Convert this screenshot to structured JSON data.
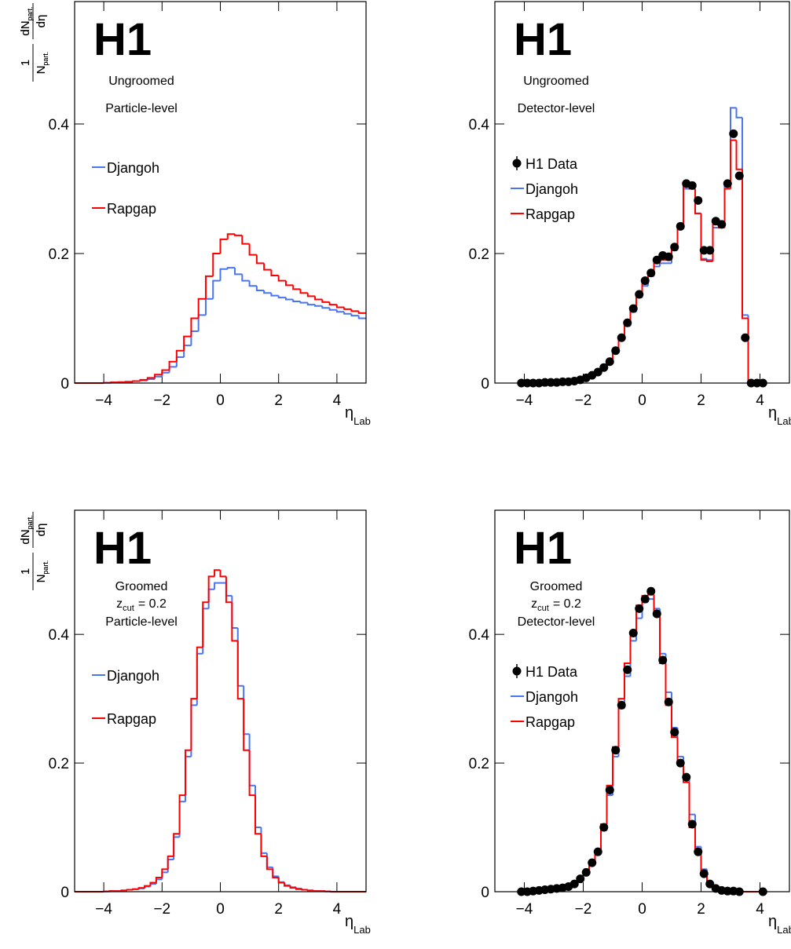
{
  "chart_data": [
    {
      "type": "histogram",
      "title": "H1",
      "annotations": [
        "Ungroomed",
        "Particle-level"
      ],
      "ylabel": {
        "num1": "1",
        "den1": "N",
        "den1_sub": "part.",
        "num2": "dN",
        "num2_sub": "part.",
        "den2": "dη"
      },
      "xlabel": "η",
      "xlabel_sub": "Lab",
      "xlim": [
        -5,
        5
      ],
      "xticks": [
        {
          "value": -4,
          "label": "−4"
        },
        {
          "value": -2,
          "label": "−2"
        },
        0,
        2,
        4
      ],
      "ylim": [
        0,
        0.589
      ],
      "yticks": [
        0,
        0.2,
        0.4
      ],
      "bins": [
        -5,
        -4.75,
        -4.5,
        -4.25,
        -4,
        -3.75,
        -3.5,
        -3.25,
        -3,
        -2.75,
        -2.5,
        -2.25,
        -2,
        -1.75,
        -1.5,
        -1.25,
        -1,
        -0.75,
        -0.5,
        -0.25,
        0,
        0.25,
        0.5,
        0.75,
        1,
        1.25,
        1.5,
        1.75,
        2,
        2.25,
        2.5,
        2.75,
        3,
        3.25,
        3.5,
        3.75,
        4,
        4.25,
        4.5,
        4.75,
        5
      ],
      "series": [
        {
          "name": "Djangoh",
          "color": "#4a74f0",
          "values": [
            0,
            0,
            0,
            0,
            0.0005,
            0.001,
            0.001,
            0.002,
            0.003,
            0.004,
            0.006,
            0.01,
            0.016,
            0.025,
            0.04,
            0.058,
            0.08,
            0.105,
            0.13,
            0.158,
            0.176,
            0.178,
            0.168,
            0.158,
            0.15,
            0.143,
            0.139,
            0.135,
            0.132,
            0.129,
            0.126,
            0.124,
            0.121,
            0.119,
            0.116,
            0.113,
            0.11,
            0.107,
            0.104,
            0.1
          ]
        },
        {
          "name": "Rapgap",
          "color": "#ff0000",
          "values": [
            0,
            0,
            0,
            0,
            0.0005,
            0.001,
            0.0015,
            0.002,
            0.003,
            0.005,
            0.008,
            0.013,
            0.02,
            0.033,
            0.05,
            0.072,
            0.1,
            0.13,
            0.165,
            0.2,
            0.222,
            0.23,
            0.228,
            0.215,
            0.198,
            0.185,
            0.175,
            0.166,
            0.158,
            0.151,
            0.145,
            0.139,
            0.134,
            0.129,
            0.125,
            0.121,
            0.117,
            0.114,
            0.111,
            0.108
          ]
        }
      ]
    },
    {
      "type": "histogram",
      "title": "H1",
      "annotations": [
        "Ungroomed",
        "Detector-level"
      ],
      "ylabel": {
        "num1": "1",
        "den1": "N",
        "den1_sub": "part.",
        "num2": "dN",
        "num2_sub": "part.",
        "den2": "dη"
      },
      "xlabel": "η",
      "xlabel_sub": "Lab",
      "xlim": [
        -5,
        5
      ],
      "xticks": [
        {
          "value": -4,
          "label": "−4"
        },
        {
          "value": -2,
          "label": "−2"
        },
        0,
        2,
        4
      ],
      "ylim": [
        0,
        0.589
      ],
      "yticks": [
        0,
        0.2,
        0.4
      ],
      "bins": [
        -4.2,
        -4,
        -3.8,
        -3.6,
        -3.4,
        -3.2,
        -3,
        -2.8,
        -2.6,
        -2.4,
        -2.2,
        -2,
        -1.8,
        -1.6,
        -1.4,
        -1.2,
        -1,
        -0.8,
        -0.6,
        -0.4,
        -0.2,
        0,
        0.2,
        0.4,
        0.6,
        0.8,
        1,
        1.2,
        1.4,
        1.6,
        1.8,
        2,
        2.2,
        2.4,
        2.6,
        2.8,
        3,
        3.2,
        3.4,
        3.6,
        3.8,
        4,
        4.2
      ],
      "series": [
        {
          "name": "H1 Data",
          "color": "#000000",
          "marker": "circle",
          "values": [
            0,
            0,
            0,
            0,
            0.001,
            0.001,
            0.001,
            0.002,
            0.002,
            0.003,
            0.005,
            0.008,
            0.012,
            0.017,
            0.024,
            0.033,
            0.05,
            0.07,
            0.093,
            0.115,
            0.137,
            0.158,
            0.17,
            0.19,
            0.197,
            0.195,
            0.21,
            0.242,
            0.308,
            0.305,
            0.282,
            0.205,
            0.205,
            0.25,
            0.245,
            0.308,
            0.385,
            0.32,
            0.07,
            0,
            0,
            0
          ]
        },
        {
          "name": "Djangoh",
          "color": "#4a74f0",
          "values": [
            0,
            0,
            0,
            0,
            0.001,
            0.001,
            0.001,
            0.002,
            0.002,
            0.003,
            0.005,
            0.008,
            0.012,
            0.016,
            0.023,
            0.032,
            0.048,
            0.067,
            0.088,
            0.11,
            0.132,
            0.15,
            0.165,
            0.18,
            0.185,
            0.185,
            0.205,
            0.238,
            0.3,
            0.3,
            0.262,
            0.192,
            0.19,
            0.24,
            0.24,
            0.31,
            0.425,
            0.41,
            0.105,
            0,
            0,
            0
          ]
        },
        {
          "name": "Rapgap",
          "color": "#ff0000",
          "values": [
            0,
            0,
            0,
            0,
            0.001,
            0.001,
            0.001,
            0.002,
            0.002,
            0.003,
            0.005,
            0.008,
            0.012,
            0.017,
            0.024,
            0.034,
            0.05,
            0.07,
            0.092,
            0.114,
            0.137,
            0.155,
            0.168,
            0.185,
            0.19,
            0.19,
            0.208,
            0.24,
            0.305,
            0.3,
            0.262,
            0.19,
            0.188,
            0.245,
            0.24,
            0.3,
            0.375,
            0.33,
            0.1,
            0,
            0,
            0
          ]
        }
      ]
    },
    {
      "type": "histogram",
      "title": "H1",
      "annotations": [
        "Groomed",
        {
          "text": "z",
          "sub": "cut",
          "rest": "= 0.2"
        },
        "Particle-level"
      ],
      "ylabel": {
        "num1": "1",
        "den1": "N",
        "den1_sub": "part.",
        "num2": "dN",
        "num2_sub": "part.",
        "den2": "dη"
      },
      "xlabel": "η",
      "xlabel_sub": "Lab",
      "xlim": [
        -5,
        5
      ],
      "xticks": [
        {
          "value": -4,
          "label": "−4"
        },
        {
          "value": -2,
          "label": "−2"
        },
        0,
        2,
        4
      ],
      "ylim": [
        0,
        0.593
      ],
      "yticks": [
        0,
        0.2,
        0.4
      ],
      "bins": [
        -5,
        -4.8,
        -4.6,
        -4.4,
        -4.2,
        -4,
        -3.8,
        -3.6,
        -3.4,
        -3.2,
        -3,
        -2.8,
        -2.6,
        -2.4,
        -2.2,
        -2,
        -1.8,
        -1.6,
        -1.4,
        -1.2,
        -1,
        -0.8,
        -0.6,
        -0.4,
        -0.2,
        0,
        0.2,
        0.4,
        0.6,
        0.8,
        1,
        1.2,
        1.4,
        1.6,
        1.8,
        2,
        2.2,
        2.4,
        2.6,
        2.8,
        3,
        3.2,
        3.4,
        3.6,
        3.8,
        4,
        4.2,
        4.4,
        4.6,
        4.8,
        5
      ],
      "series": [
        {
          "name": "Djangoh",
          "color": "#4a74f0",
          "values": [
            0,
            0,
            0,
            0,
            0,
            0.0005,
            0.001,
            0.001,
            0.002,
            0.003,
            0.004,
            0.005,
            0.008,
            0.012,
            0.019,
            0.03,
            0.05,
            0.085,
            0.14,
            0.21,
            0.29,
            0.37,
            0.44,
            0.47,
            0.48,
            0.48,
            0.46,
            0.41,
            0.32,
            0.245,
            0.165,
            0.1,
            0.06,
            0.038,
            0.024,
            0.015,
            0.01,
            0.007,
            0.005,
            0.003,
            0.002,
            0.001,
            0.001,
            0.0005,
            0,
            0,
            0,
            0,
            0,
            0
          ]
        },
        {
          "name": "Rapgap",
          "color": "#ff0000",
          "values": [
            0,
            0,
            0,
            0,
            0,
            0.0005,
            0.001,
            0.001,
            0.002,
            0.003,
            0.004,
            0.006,
            0.009,
            0.014,
            0.022,
            0.035,
            0.055,
            0.09,
            0.15,
            0.22,
            0.3,
            0.38,
            0.45,
            0.49,
            0.5,
            0.49,
            0.45,
            0.39,
            0.3,
            0.22,
            0.15,
            0.09,
            0.055,
            0.035,
            0.022,
            0.014,
            0.009,
            0.006,
            0.004,
            0.003,
            0.002,
            0.001,
            0.001,
            0.0005,
            0,
            0,
            0,
            0,
            0,
            0
          ]
        }
      ]
    },
    {
      "type": "histogram",
      "title": "H1",
      "annotations": [
        "Groomed",
        {
          "text": "z",
          "sub": "cut",
          "rest": "= 0.2"
        },
        "Detector-level"
      ],
      "ylabel": {
        "num1": "1",
        "den1": "N",
        "den1_sub": "part.",
        "num2": "dN",
        "num2_sub": "part.",
        "den2": "dη"
      },
      "xlabel": "η",
      "xlabel_sub": "Lab",
      "xlim": [
        -5,
        5
      ],
      "xticks": [
        {
          "value": -4,
          "label": "−4"
        },
        {
          "value": -2,
          "label": "−2"
        },
        0,
        2,
        4
      ],
      "ylim": [
        0,
        0.593
      ],
      "yticks": [
        0,
        0.2,
        0.4
      ],
      "bins": [
        -4.2,
        -4,
        -3.8,
        -3.6,
        -3.4,
        -3.2,
        -3,
        -2.8,
        -2.6,
        -2.4,
        -2.2,
        -2,
        -1.8,
        -1.6,
        -1.4,
        -1.2,
        -1,
        -0.8,
        -0.6,
        -0.4,
        -0.2,
        0,
        0.2,
        0.4,
        0.6,
        0.8,
        1,
        1.2,
        1.4,
        1.6,
        1.8,
        2,
        2.2,
        2.4,
        2.6,
        2.8,
        3,
        3.2,
        3.4,
        3.6,
        3.8,
        4,
        4.2
      ],
      "series": [
        {
          "name": "H1 Data",
          "color": "#000000",
          "marker": "circle",
          "values": [
            0,
            0,
            0.001,
            0.002,
            0.003,
            0.004,
            0.005,
            0.006,
            0.008,
            0.012,
            0.02,
            0.03,
            0.045,
            0.062,
            0.1,
            0.158,
            0.22,
            0.29,
            0.345,
            0.402,
            0.44,
            0.455,
            0.467,
            0.432,
            0.36,
            0.295,
            0.248,
            0.2,
            0.178,
            0.105,
            0.062,
            0.028,
            0.012,
            0.005,
            0.002,
            0.001,
            0.001,
            0,
            null,
            null,
            null,
            0
          ]
        },
        {
          "name": "Djangoh",
          "color": "#4a74f0",
          "values": [
            0,
            0,
            0,
            0.001,
            0.002,
            0.003,
            0.004,
            0.005,
            0.007,
            0.011,
            0.018,
            0.028,
            0.042,
            0.06,
            0.095,
            0.15,
            0.21,
            0.285,
            0.335,
            0.39,
            0.425,
            0.45,
            0.455,
            0.44,
            0.37,
            0.31,
            0.255,
            0.21,
            0.18,
            0.12,
            0.07,
            0.035,
            0.015,
            0.006,
            0.002,
            0.001,
            0.001,
            0,
            0,
            0,
            0,
            0
          ]
        },
        {
          "name": "Rapgap",
          "color": "#ff0000",
          "values": [
            0,
            0,
            0,
            0.001,
            0.002,
            0.003,
            0.004,
            0.005,
            0.008,
            0.012,
            0.02,
            0.03,
            0.045,
            0.063,
            0.105,
            0.165,
            0.225,
            0.3,
            0.355,
            0.405,
            0.445,
            0.46,
            0.462,
            0.43,
            0.355,
            0.29,
            0.24,
            0.198,
            0.17,
            0.1,
            0.06,
            0.026,
            0.011,
            0.004,
            0.002,
            0.001,
            0.001,
            0,
            0,
            0,
            0,
            0
          ]
        }
      ]
    }
  ]
}
